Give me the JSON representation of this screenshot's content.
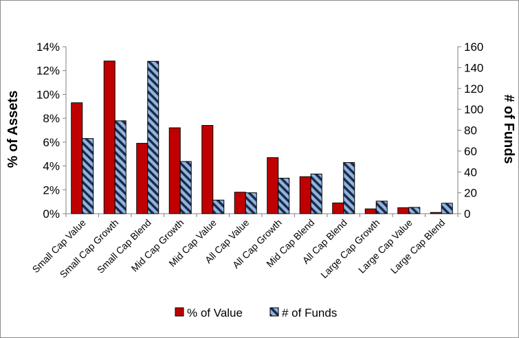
{
  "chart_data": {
    "type": "bar",
    "categories": [
      "Small Cap Value",
      "Small Cap Growth",
      "Small Cap Blend",
      "Mid Cap Growth",
      "Mid Cap Value",
      "All Cap Value",
      "All Cap Growth",
      "Mid Cap Blend",
      "All Cap Blend",
      "Large Cap Growth",
      "Large Cap Value",
      "Large Cap Blend"
    ],
    "series": [
      {
        "name": "% of Value",
        "axis": "left",
        "color": "#c00000",
        "values": [
          9.3,
          12.8,
          5.9,
          7.2,
          7.4,
          1.8,
          4.7,
          3.1,
          0.9,
          0.4,
          0.5,
          0.1
        ]
      },
      {
        "name": "# of Funds",
        "axis": "right",
        "color": "#8db4e2",
        "pattern": "diagonal-stripes",
        "values": [
          72,
          89,
          146,
          50,
          13,
          20,
          34,
          38,
          49,
          12,
          6,
          10
        ]
      }
    ],
    "ylabel": "% of Assets",
    "y2label": "# of Funds",
    "ylim": [
      0,
      14
    ],
    "y2lim": [
      0,
      160
    ],
    "yticks": [
      "0%",
      "2%",
      "4%",
      "6%",
      "8%",
      "10%",
      "12%",
      "14%"
    ],
    "y2ticks": [
      "0",
      "20",
      "40",
      "60",
      "80",
      "100",
      "120",
      "140",
      "160"
    ],
    "legend_position": "bottom",
    "grid": false
  }
}
